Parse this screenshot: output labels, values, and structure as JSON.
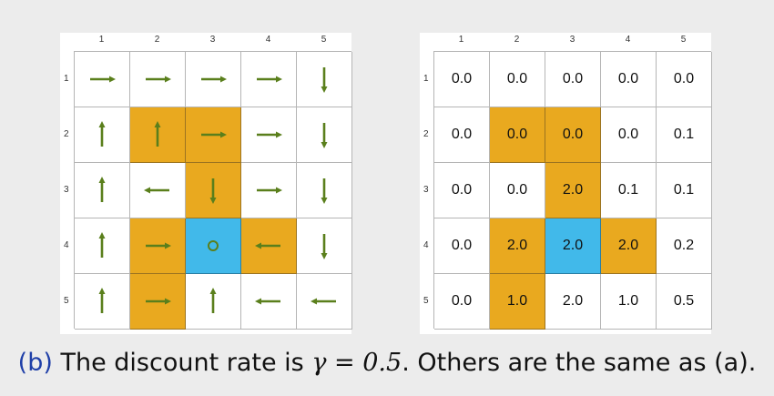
{
  "colors": {
    "forbidden": "#e9a91f",
    "target": "#41b9ea",
    "arrow": "#5a7f1c",
    "caption_label": "#1f3fa8"
  },
  "policy_grid": {
    "column_labels": [
      "1",
      "2",
      "3",
      "4",
      "5"
    ],
    "row_labels": [
      "1",
      "2",
      "3",
      "4",
      "5"
    ],
    "cell_types": [
      [
        "normal",
        "normal",
        "normal",
        "normal",
        "normal"
      ],
      [
        "normal",
        "forbidden",
        "forbidden",
        "normal",
        "normal"
      ],
      [
        "normal",
        "normal",
        "forbidden",
        "normal",
        "normal"
      ],
      [
        "normal",
        "forbidden",
        "target",
        "forbidden",
        "normal"
      ],
      [
        "normal",
        "forbidden",
        "normal",
        "normal",
        "normal"
      ]
    ],
    "actions": [
      [
        "right",
        "right",
        "right",
        "right",
        "down"
      ],
      [
        "up",
        "up",
        "right",
        "right",
        "down"
      ],
      [
        "up",
        "left",
        "down",
        "right",
        "down"
      ],
      [
        "up",
        "right",
        "stay",
        "left",
        "down"
      ],
      [
        "up",
        "right",
        "up",
        "left",
        "left"
      ]
    ]
  },
  "value_grid": {
    "column_labels": [
      "1",
      "2",
      "3",
      "4",
      "5"
    ],
    "row_labels": [
      "1",
      "2",
      "3",
      "4",
      "5"
    ],
    "cell_types": [
      [
        "normal",
        "normal",
        "normal",
        "normal",
        "normal"
      ],
      [
        "normal",
        "forbidden",
        "forbidden",
        "normal",
        "normal"
      ],
      [
        "normal",
        "normal",
        "forbidden",
        "normal",
        "normal"
      ],
      [
        "normal",
        "forbidden",
        "target",
        "forbidden",
        "normal"
      ],
      [
        "normal",
        "forbidden",
        "normal",
        "normal",
        "normal"
      ]
    ],
    "values": [
      [
        "0.0",
        "0.0",
        "0.0",
        "0.0",
        "0.0"
      ],
      [
        "0.0",
        "0.0",
        "0.0",
        "0.0",
        "0.1"
      ],
      [
        "0.0",
        "0.0",
        "2.0",
        "0.1",
        "0.1"
      ],
      [
        "0.0",
        "2.0",
        "2.0",
        "2.0",
        "0.2"
      ],
      [
        "0.0",
        "1.0",
        "2.0",
        "1.0",
        "0.5"
      ]
    ]
  },
  "caption": {
    "label": "(b)",
    "text_before": " The discount rate is ",
    "math": "γ = 0.5",
    "text_after": ". Others are the same as (a)."
  }
}
